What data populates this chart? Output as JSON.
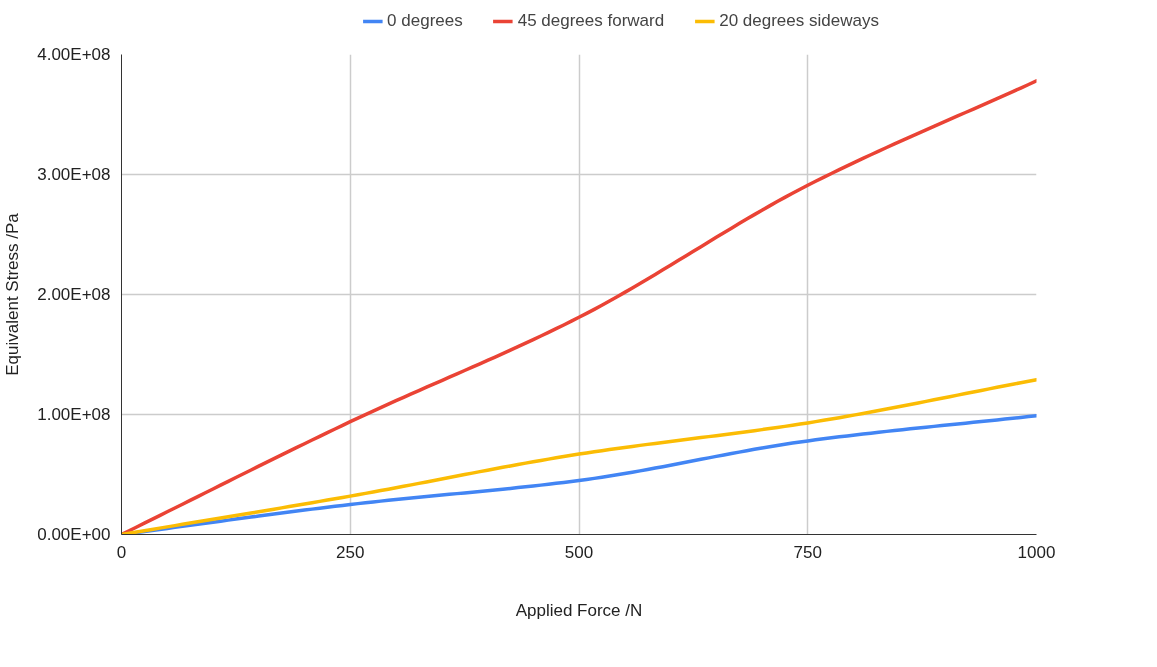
{
  "chart_data": {
    "type": "line",
    "xlabel": "Applied Force /N",
    "ylabel": "Equivalent Stress /Pa",
    "x": [
      0,
      250,
      500,
      750,
      1000
    ],
    "series": [
      {
        "name": "0 degrees",
        "color": "#4285f4",
        "values": [
          0,
          25000000,
          45000000,
          78000000,
          99000000
        ]
      },
      {
        "name": "45 degrees forward",
        "color": "#ea4335",
        "values": [
          0,
          94000000,
          181000000,
          291000000,
          378000000
        ]
      },
      {
        "name": "20 degrees sideways",
        "color": "#fbbc04",
        "values": [
          0,
          32000000,
          67000000,
          93000000,
          129000000
        ]
      }
    ],
    "xlim": [
      0,
      1000
    ],
    "xticks": [
      0,
      250,
      500,
      750,
      1000
    ],
    "ylim": [
      0,
      400000000
    ],
    "yticks": [
      {
        "value": 0,
        "label": "0.00E+00"
      },
      {
        "value": 100000000,
        "label": "1.00E+08"
      },
      {
        "value": 200000000,
        "label": "2.00E+08"
      },
      {
        "value": 300000000,
        "label": "3.00E+08"
      },
      {
        "value": 400000000,
        "label": "4.00E+08"
      }
    ],
    "grid": true,
    "legend": "top",
    "marker": "none",
    "line_style": "solid"
  }
}
